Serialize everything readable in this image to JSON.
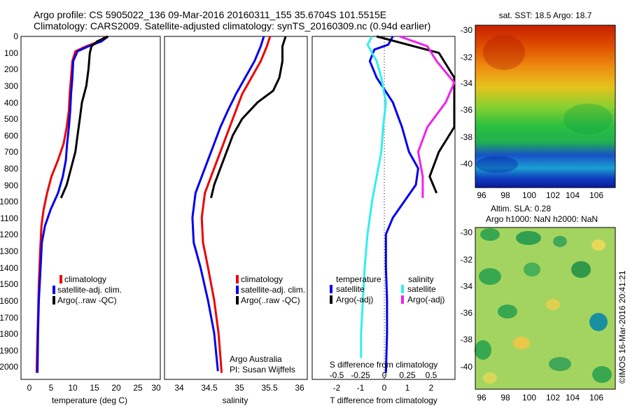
{
  "header": {
    "line1": "Argo profile: CS 5905022_136 09-Mar-2016 20160311_155 35.6704S 101.5515E",
    "line2": "Climatology: CARS2009. Satellite-adjusted climatology: synTS_20160309.nc (0.94d earlier)"
  },
  "colors": {
    "climatology": "#ee0000",
    "satellite": "#0000ee",
    "argo": "#000000",
    "salinity_satellite": "#33eeee",
    "salinity_argo": "#ee22ee"
  },
  "depth_ticks": [
    "0",
    "100",
    "200",
    "300",
    "400",
    "500",
    "600",
    "700",
    "800",
    "900",
    "1000",
    "1100",
    "1200",
    "1300",
    "1400",
    "1500",
    "1600",
    "1700",
    "1800",
    "1900",
    "2000"
  ],
  "legend": {
    "climatology": "climatology",
    "satellite": "satellite-adj. clim.",
    "argo": "Argo(..raw -QC)"
  },
  "diff_legend": {
    "temperature_header": "temperature",
    "salinity_header": "salinity",
    "satellite": "satellite",
    "argo": "Argo(-adj)"
  },
  "panel_text": {
    "credit1": "Argo Australia",
    "credit2": "PI: Susan Wijffels",
    "s_diff_title": "S difference from climatology",
    "watermark": "©IMOS 16-Mar-2016 20:41:21"
  },
  "map_sst": {
    "title": "sat. SST: 18.5 Argo: 18.7",
    "y_ticks": [
      "-30",
      "-32",
      "-34",
      "-36",
      "-38",
      "-40"
    ],
    "x_ticks": [
      "96",
      "98",
      "100",
      "102",
      "104",
      "106"
    ]
  },
  "map_sla": {
    "title1": "Altim. SLA: 0.28",
    "title2": "Argo h1000: NaN h2000: NaN",
    "y_ticks": [
      "-30",
      "-32",
      "-34",
      "-36",
      "-38",
      "-40"
    ],
    "x_ticks": [
      "96",
      "98",
      "100",
      "102",
      "104",
      "106"
    ]
  },
  "chart_data": [
    {
      "type": "line",
      "xlabel": "temperature (deg C)",
      "ylabel": "",
      "xlim": [
        -1,
        31
      ],
      "ylim": [
        2080,
        0
      ],
      "x_ticks": [
        "0",
        "5",
        "10",
        "15",
        "20",
        "25",
        "30"
      ],
      "series": [
        {
          "name": "climatology",
          "points": [
            [
              18.5,
              0
            ],
            [
              17,
              30
            ],
            [
              14,
              60
            ],
            [
              11.5,
              90
            ],
            [
              10.8,
              150
            ],
            [
              10.5,
              250
            ],
            [
              10.2,
              350
            ],
            [
              10,
              450
            ],
            [
              9.5,
              550
            ],
            [
              8.8,
              650
            ],
            [
              7.5,
              750
            ],
            [
              6,
              850
            ],
            [
              5,
              950
            ],
            [
              4.2,
              1050
            ],
            [
              3.7,
              1150
            ],
            [
              3.4,
              1300
            ],
            [
              3.1,
              1500
            ],
            [
              2.9,
              1700
            ],
            [
              2.7,
              1900
            ],
            [
              2.6,
              2040
            ]
          ]
        },
        {
          "name": "satellite-adj. clim.",
          "points": [
            [
              19,
              0
            ],
            [
              17.5,
              30
            ],
            [
              14.5,
              60
            ],
            [
              12,
              90
            ],
            [
              11,
              150
            ],
            [
              10.8,
              250
            ],
            [
              10.5,
              350
            ],
            [
              10.3,
              450
            ],
            [
              10,
              550
            ],
            [
              9.6,
              650
            ],
            [
              9.3,
              750
            ],
            [
              8.6,
              850
            ],
            [
              7.5,
              950
            ],
            [
              5.8,
              1050
            ],
            [
              4.5,
              1150
            ],
            [
              3.8,
              1250
            ],
            [
              3.5,
              1400
            ],
            [
              3.1,
              1600
            ],
            [
              2.9,
              1800
            ],
            [
              2.8,
              2040
            ]
          ]
        },
        {
          "name": "Argo(..raw -QC)",
          "points": [
            [
              19,
              0
            ],
            [
              16.5,
              30
            ],
            [
              15.2,
              60
            ],
            [
              14.8,
              100
            ],
            [
              14.5,
              200
            ],
            [
              14,
              300
            ],
            [
              13,
              400
            ],
            [
              12.5,
              500
            ],
            [
              12,
              600
            ],
            [
              11.5,
              700
            ],
            [
              10.5,
              800
            ],
            [
              9.5,
              900
            ],
            [
              8.2,
              980
            ]
          ]
        }
      ]
    },
    {
      "type": "line",
      "xlabel": "salinity",
      "ylabel": "",
      "xlim": [
        33.8,
        36.1
      ],
      "ylim": [
        2080,
        0
      ],
      "x_ticks": [
        "34",
        "34.5",
        "35",
        "35.5",
        "36"
      ],
      "series": [
        {
          "name": "climatology",
          "points": [
            [
              35.5,
              0
            ],
            [
              35.45,
              60
            ],
            [
              35.35,
              150
            ],
            [
              35.2,
              250
            ],
            [
              35.05,
              350
            ],
            [
              34.95,
              450
            ],
            [
              34.85,
              550
            ],
            [
              34.75,
              650
            ],
            [
              34.65,
              750
            ],
            [
              34.55,
              850
            ],
            [
              34.45,
              950
            ],
            [
              34.4,
              1100
            ],
            [
              34.42,
              1250
            ],
            [
              34.5,
              1400
            ],
            [
              34.6,
              1600
            ],
            [
              34.67,
              1800
            ],
            [
              34.72,
              2040
            ]
          ]
        },
        {
          "name": "satellite-adj. clim.",
          "points": [
            [
              35.4,
              0
            ],
            [
              35.35,
              60
            ],
            [
              35.25,
              150
            ],
            [
              35.1,
              250
            ],
            [
              34.95,
              350
            ],
            [
              34.82,
              450
            ],
            [
              34.7,
              550
            ],
            [
              34.6,
              650
            ],
            [
              34.5,
              750
            ],
            [
              34.4,
              850
            ],
            [
              34.3,
              950
            ],
            [
              34.25,
              1100
            ],
            [
              34.27,
              1250
            ],
            [
              34.38,
              1400
            ],
            [
              34.5,
              1600
            ],
            [
              34.6,
              1800
            ],
            [
              34.66,
              2030
            ]
          ]
        },
        {
          "name": "Argo(..raw -QC)",
          "points": [
            [
              35.75,
              0
            ],
            [
              35.7,
              60
            ],
            [
              35.7,
              150
            ],
            [
              35.65,
              250
            ],
            [
              35.55,
              330
            ],
            [
              35.3,
              400
            ],
            [
              35.05,
              500
            ],
            [
              34.9,
              600
            ],
            [
              34.8,
              700
            ],
            [
              34.7,
              800
            ],
            [
              34.6,
              900
            ],
            [
              34.55,
              980
            ]
          ]
        }
      ]
    },
    {
      "type": "line",
      "xlabel": "T difference from climatology",
      "ylabel": "",
      "xlim": [
        -3,
        3.2
      ],
      "ylim": [
        2080,
        0
      ],
      "x_ticks": [
        "-2",
        "-1",
        "0",
        "1",
        "2"
      ],
      "s_ticks": [
        "-0.5",
        "-0.25",
        "0",
        "0.25",
        "0.5"
      ],
      "series": [
        {
          "name": "temperature satellite",
          "points": [
            [
              0.5,
              0
            ],
            [
              0.3,
              50
            ],
            [
              -0.3,
              80
            ],
            [
              -0.5,
              150
            ],
            [
              -0.2,
              250
            ],
            [
              0.5,
              400
            ],
            [
              0.9,
              550
            ],
            [
              1.2,
              700
            ],
            [
              1.6,
              800
            ],
            [
              1.5,
              900
            ],
            [
              1,
              1000
            ],
            [
              0.5,
              1100
            ],
            [
              0.2,
              1200
            ],
            [
              0.2,
              1400
            ],
            [
              0.25,
              1600
            ],
            [
              0.25,
              1800
            ],
            [
              0.2,
              2040
            ]
          ]
        },
        {
          "name": "temperature Argo(-adj)",
          "points": [
            [
              -0.2,
              0
            ],
            [
              2.5,
              100
            ],
            [
              4,
              250
            ],
            [
              4,
              400
            ],
            [
              3.3,
              550
            ],
            [
              2.5,
              700
            ],
            [
              2.1,
              850
            ],
            [
              2.4,
              950
            ]
          ]
        },
        {
          "name": "salinity satellite",
          "points": [
            [
              -0.1,
              0
            ],
            [
              -0.15,
              50
            ],
            [
              -0.1,
              100
            ],
            [
              -0.05,
              150
            ],
            [
              0,
              250
            ],
            [
              0.05,
              400
            ],
            [
              0.02,
              550
            ],
            [
              0,
              700
            ],
            [
              -0.05,
              850
            ],
            [
              -0.1,
              1000
            ],
            [
              -0.15,
              1200
            ],
            [
              -0.18,
              1400
            ],
            [
              -0.2,
              1600
            ],
            [
              -0.22,
              1800
            ],
            [
              -0.22,
              1950
            ]
          ]
        },
        {
          "name": "salinity Argo(-adj)",
          "points": [
            [
              0.2,
              0
            ],
            [
              0.5,
              60
            ],
            [
              0.6,
              150
            ],
            [
              0.8,
              280
            ],
            [
              0.7,
              400
            ],
            [
              0.5,
              550
            ],
            [
              0.4,
              700
            ],
            [
              0.45,
              850
            ],
            [
              0.45,
              980
            ]
          ]
        }
      ]
    }
  ]
}
